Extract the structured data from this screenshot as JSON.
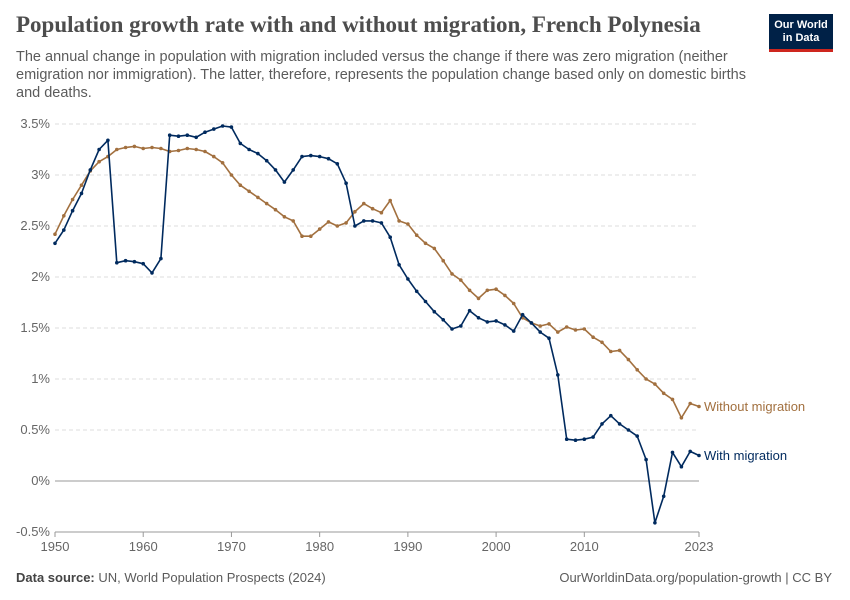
{
  "header": {
    "title": "Population growth rate with and without migration, French Polynesia",
    "subtitle": "The annual change in population with migration included versus the change if there was zero migration (neither emigration nor immigration). The latter, therefore, represents the population change based only on domestic births and deaths.",
    "logo_line1": "Our World",
    "logo_line2": "in Data"
  },
  "footer": {
    "source_label": "Data source:",
    "source_text": "UN, World Population Prospects (2024)",
    "link_text": "OurWorldinData.org/population-growth | CC BY"
  },
  "colors": {
    "with_migration": "#002a5e",
    "without_migration": "#a2703f",
    "grid": "#dddddd",
    "zero_line": "#999999"
  },
  "chart_data": {
    "type": "line",
    "title": "Population growth rate with and without migration, French Polynesia",
    "xlabel": "",
    "ylabel": "",
    "xlim": [
      1950,
      2023
    ],
    "ylim": [
      -0.5,
      3.5
    ],
    "x_ticks": [
      1950,
      1960,
      1970,
      1980,
      1990,
      2000,
      2010,
      2023
    ],
    "y_ticks": [
      -0.5,
      0,
      0.5,
      1,
      1.5,
      2,
      2.5,
      3,
      3.5
    ],
    "y_tick_labels": [
      "-0.5%",
      "0%",
      "0.5%",
      "1%",
      "1.5%",
      "2%",
      "2.5%",
      "3%",
      "3.5%"
    ],
    "x": [
      1950,
      1951,
      1952,
      1953,
      1954,
      1955,
      1956,
      1957,
      1958,
      1959,
      1960,
      1961,
      1962,
      1963,
      1964,
      1965,
      1966,
      1967,
      1968,
      1969,
      1970,
      1971,
      1972,
      1973,
      1974,
      1975,
      1976,
      1977,
      1978,
      1979,
      1980,
      1981,
      1982,
      1983,
      1984,
      1985,
      1986,
      1987,
      1988,
      1989,
      1990,
      1991,
      1992,
      1993,
      1994,
      1995,
      1996,
      1997,
      1998,
      1999,
      2000,
      2001,
      2002,
      2003,
      2004,
      2005,
      2006,
      2007,
      2008,
      2009,
      2010,
      2011,
      2012,
      2013,
      2014,
      2015,
      2016,
      2017,
      2018,
      2019,
      2020,
      2021,
      2022,
      2023
    ],
    "series": [
      {
        "name": "Without migration",
        "color": "#a2703f",
        "values": [
          2.42,
          2.6,
          2.76,
          2.9,
          3.04,
          3.13,
          3.18,
          3.25,
          3.27,
          3.28,
          3.26,
          3.27,
          3.26,
          3.23,
          3.24,
          3.26,
          3.25,
          3.23,
          3.18,
          3.12,
          3.0,
          2.9,
          2.84,
          2.78,
          2.72,
          2.66,
          2.59,
          2.55,
          2.4,
          2.4,
          2.47,
          2.54,
          2.5,
          2.53,
          2.64,
          2.72,
          2.67,
          2.63,
          2.75,
          2.55,
          2.52,
          2.41,
          2.33,
          2.28,
          2.16,
          2.03,
          1.97,
          1.87,
          1.79,
          1.87,
          1.88,
          1.82,
          1.74,
          1.6,
          1.55,
          1.52,
          1.54,
          1.46,
          1.51,
          1.48,
          1.49,
          1.41,
          1.36,
          1.27,
          1.28,
          1.19,
          1.09,
          1.0,
          0.95,
          0.86,
          0.8,
          0.62,
          0.76,
          0.73
        ]
      },
      {
        "name": "With migration",
        "color": "#002a5e",
        "values": [
          2.33,
          2.46,
          2.65,
          2.82,
          3.05,
          3.25,
          3.34,
          2.14,
          2.16,
          2.15,
          2.13,
          2.04,
          2.18,
          3.39,
          3.38,
          3.39,
          3.37,
          3.42,
          3.45,
          3.48,
          3.47,
          3.31,
          3.25,
          3.21,
          3.14,
          3.05,
          2.93,
          3.05,
          3.18,
          3.19,
          3.18,
          3.16,
          3.11,
          2.92,
          2.5,
          2.55,
          2.55,
          2.53,
          2.39,
          2.12,
          1.98,
          1.86,
          1.76,
          1.66,
          1.58,
          1.49,
          1.52,
          1.67,
          1.6,
          1.56,
          1.57,
          1.53,
          1.47,
          1.63,
          1.55,
          1.46,
          1.4,
          1.04,
          0.41,
          0.4,
          0.41,
          0.43,
          0.56,
          0.64,
          0.56,
          0.5,
          0.44,
          0.21,
          -0.41,
          -0.15,
          0.28,
          0.14,
          0.29,
          0.25
        ]
      }
    ],
    "legend_placement": "right-end-labels"
  }
}
